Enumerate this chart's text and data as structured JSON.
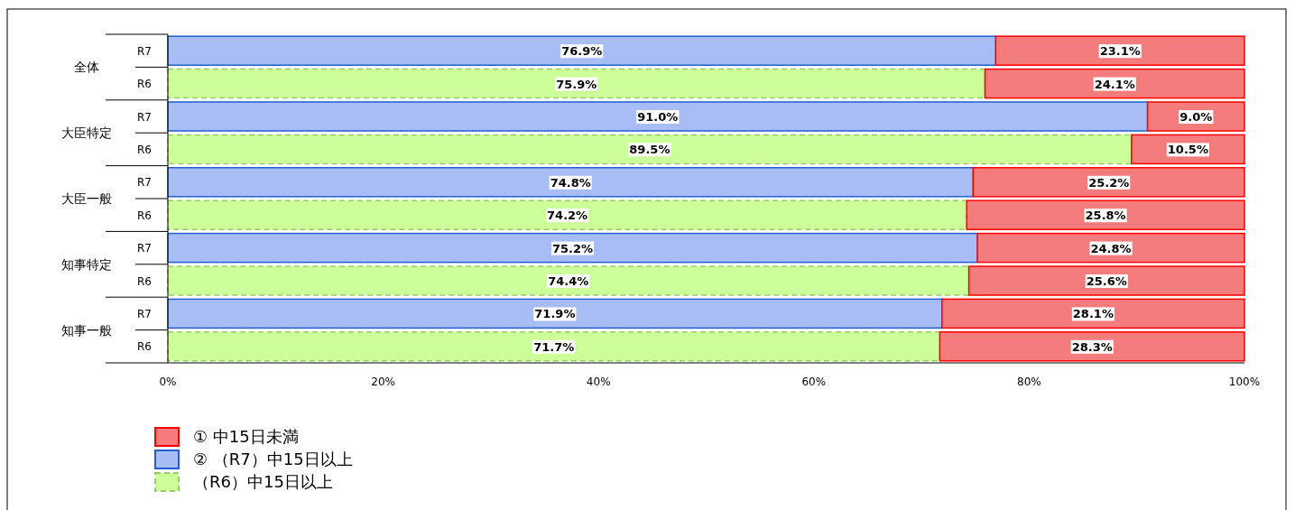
{
  "chart_data": {
    "type": "bar",
    "orientation": "horizontal",
    "stacked": true,
    "categories": [
      "R7",
      "R6",
      "R7",
      "R6",
      "R7",
      "R6",
      "R7",
      "R6",
      "R7",
      "R6"
    ],
    "annotations": [
      "全体",
      "大臣特定",
      "大臣一般",
      "知事特定",
      "知事一般"
    ],
    "series": [
      {
        "name": "② （R7）中15日以上",
        "color": "#a9bdf5",
        "values": [
          76.9,
          null,
          91.0,
          null,
          74.8,
          null,
          75.2,
          null,
          71.9,
          null
        ],
        "value_labels": [
          "76.9%",
          null,
          "91.0%",
          null,
          "74.8%",
          null,
          "75.2%",
          null,
          "71.9%",
          null
        ]
      },
      {
        "name": "（R6）中15日以上",
        "color": "#ccff99",
        "values": [
          null,
          75.9,
          null,
          89.5,
          null,
          74.2,
          null,
          74.4,
          null,
          71.7
        ],
        "value_labels": [
          null,
          "75.9%",
          null,
          "89.5%",
          null,
          "74.2%",
          null,
          "74.4%",
          null,
          "71.7%"
        ]
      },
      {
        "name": "① 中15日未満",
        "color": "#f47c7c",
        "values": [
          23.1,
          24.1,
          9.0,
          10.5,
          25.2,
          25.8,
          24.8,
          25.6,
          28.1,
          28.3
        ],
        "value_labels": [
          "23.1%",
          "24.1%",
          "9.0%",
          "10.5%",
          "25.2%",
          "25.8%",
          "24.8%",
          "25.6%",
          "28.1%",
          "28.3%"
        ]
      }
    ],
    "xlim": [
      0,
      100
    ],
    "xticks": [
      {
        "value": 0,
        "label": "0%"
      },
      {
        "value": 20,
        "label": "20%"
      },
      {
        "value": 40,
        "label": "40%"
      },
      {
        "value": 60,
        "label": "60%"
      },
      {
        "value": 80,
        "label": "80%"
      },
      {
        "value": 100,
        "label": "100%"
      }
    ],
    "legend": "bottom left"
  }
}
